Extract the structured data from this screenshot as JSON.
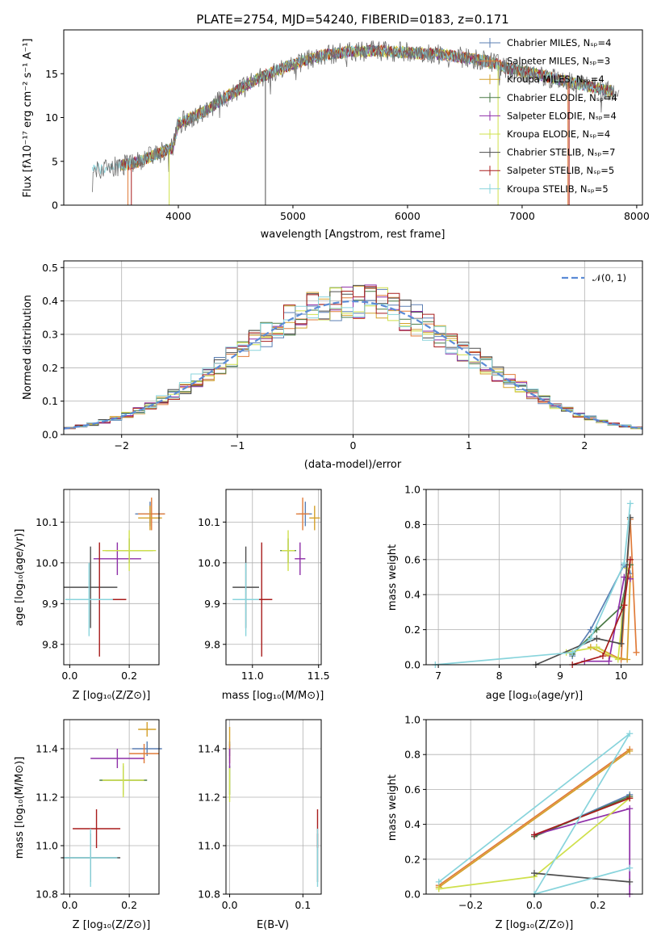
{
  "title": "PLATE=2754, MJD=54240, FIBERID=0183, z=0.171",
  "model_colors": [
    "#5b7fb3",
    "#e07b39",
    "#d4a02a",
    "#4a7a45",
    "#8e2ea8",
    "#cfe04b",
    "#4d4d4d",
    "#a81c1c",
    "#88d4dc"
  ],
  "chart_data": [
    {
      "type": "line",
      "panel": "spectrum",
      "title": "PLATE=2754, MJD=54240, FIBERID=0183, z=0.171",
      "xlabel": "wavelength [Angstrom, rest frame]",
      "ylabel": "Flux [fλ10⁻¹⁷ erg cm⁻² s⁻¹ A⁻¹]",
      "xlim": [
        3000,
        8050
      ],
      "ylim": [
        0,
        20
      ],
      "xticks": [
        "4000",
        "5000",
        "6000",
        "7000",
        "8000"
      ],
      "yticks": [
        "0",
        "5",
        "10",
        "15"
      ],
      "legend_position": "top-right",
      "legend": [
        "Chabrier MILES, Nₛₚ=4",
        "Salpeter MILES, Nₛₚ=3",
        "Kroupa MILES, Nₛₚ=4",
        "Chabrier ELODIE, Nₛₚ=4",
        "Salpeter ELODIE, Nₛₚ=4",
        "Kroupa ELODIE, Nₛₚ=4",
        "Chabrier STELIB, Nₛₚ=7",
        "Salpeter STELIB, Nₛₚ=5",
        "Kroupa STELIB, Nₛₚ=5"
      ],
      "continuum": {
        "x": [
          3250,
          3400,
          3600,
          3800,
          3950,
          4000,
          4200,
          4400,
          4500,
          4700,
          4900,
          5100,
          5300,
          5500,
          5700,
          5900,
          6100,
          6300,
          6500,
          6700,
          6900,
          7100,
          7300,
          7500,
          7700,
          7850
        ],
        "y": [
          4.0,
          4.4,
          4.7,
          5.8,
          6.5,
          9.3,
          10.5,
          12.2,
          13.0,
          14.5,
          15.6,
          16.5,
          17.2,
          17.5,
          17.6,
          17.5,
          17.3,
          17.2,
          16.8,
          16.4,
          15.5,
          15.0,
          14.4,
          13.8,
          13.2,
          12.8
        ]
      }
    },
    {
      "type": "histogram",
      "panel": "residuals",
      "xlabel": "(data-model)/error",
      "ylabel": "Normed distribution",
      "xlim": [
        -2.5,
        2.5
      ],
      "ylim": [
        0,
        0.52
      ],
      "xticks": [
        "−2",
        "−1",
        "0",
        "1",
        "2"
      ],
      "yticks": [
        "0.0",
        "0.1",
        "0.2",
        "0.3",
        "0.4",
        "0.5"
      ],
      "legend": [
        "𝒩(0, 1)"
      ],
      "legend_position": "top-right",
      "grid": true,
      "bin_width": 0.1
    },
    {
      "type": "scatter",
      "panel": "age-vs-Z",
      "xlabel": "Z [log₁₀(Z/Z⊙)]",
      "ylabel": "age  [log₁₀(age/yr)]",
      "xlim": [
        -0.02,
        0.3
      ],
      "ylim": [
        9.75,
        10.18
      ],
      "xticks": [
        "0.0",
        "0.2"
      ],
      "yticks": [
        "9.8",
        "9.9",
        "10.0",
        "10.1"
      ],
      "points": [
        {
          "x": 0.27,
          "y": 10.12,
          "xerr": 0.05,
          "yerr": 0.03
        },
        {
          "x": 0.275,
          "y": 10.12,
          "xerr": 0.045,
          "yerr": 0.04
        },
        {
          "x": 0.27,
          "y": 10.11,
          "xerr": 0.04,
          "yerr": 0.03
        },
        {
          "x": 0.2,
          "y": 10.03,
          "xerr": 0.08,
          "yerr": 0.03
        },
        {
          "x": 0.16,
          "y": 10.01,
          "xerr": 0.08,
          "yerr": 0.04
        },
        {
          "x": 0.2,
          "y": 10.03,
          "xerr": 0.09,
          "yerr": 0.05
        },
        {
          "x": 0.07,
          "y": 9.94,
          "xerr": 0.09,
          "yerr": 0.1
        },
        {
          "x": 0.1,
          "y": 9.91,
          "xerr": 0.09,
          "yerr": 0.14
        },
        {
          "x": 0.065,
          "y": 9.91,
          "xerr": 0.08,
          "yerr": 0.09
        }
      ]
    },
    {
      "type": "scatter",
      "panel": "age-vs-mass",
      "xlabel": "mass [log₁₀(M/M⊙)]",
      "ylabel": "",
      "xlim": [
        10.8,
        11.52
      ],
      "ylim": [
        9.75,
        10.18
      ],
      "xticks": [
        "11.0",
        "11.5"
      ],
      "yticks": [
        "9.8",
        "9.9",
        "10.0",
        "10.1"
      ],
      "points": [
        {
          "x": 11.4,
          "y": 10.12,
          "xerr": 0.05,
          "yerr": 0.03
        },
        {
          "x": 11.38,
          "y": 10.12,
          "xerr": 0.05,
          "yerr": 0.04
        },
        {
          "x": 11.47,
          "y": 10.11,
          "xerr": 0.04,
          "yerr": 0.03
        },
        {
          "x": 11.27,
          "y": 10.03,
          "xerr": 0.06,
          "yerr": 0.03
        },
        {
          "x": 11.36,
          "y": 10.01,
          "xerr": 0.04,
          "yerr": 0.04
        },
        {
          "x": 11.27,
          "y": 10.03,
          "xerr": 0.05,
          "yerr": 0.05
        },
        {
          "x": 10.95,
          "y": 9.94,
          "xerr": 0.1,
          "yerr": 0.1
        },
        {
          "x": 11.07,
          "y": 9.91,
          "xerr": 0.08,
          "yerr": 0.14
        },
        {
          "x": 10.95,
          "y": 9.91,
          "xerr": 0.1,
          "yerr": 0.09
        }
      ]
    },
    {
      "type": "line",
      "panel": "mass-weight-vs-age",
      "xlabel": "age  [log₁₀(age/yr)]",
      "ylabel": "mass weight",
      "xlim": [
        6.8,
        10.35
      ],
      "ylim": [
        0,
        1.0
      ],
      "xticks": [
        "7",
        "8",
        "9",
        "10"
      ],
      "yticks": [
        "0.0",
        "0.2",
        "0.4",
        "0.6",
        "0.8",
        "1.0"
      ],
      "series": [
        {
          "x": [
            9.2,
            9.5,
            10.05,
            10.15
          ],
          "y": [
            0.05,
            0.2,
            0.57,
            0.52
          ]
        },
        {
          "x": [
            9.6,
            10.0,
            10.15,
            10.25
          ],
          "y": [
            0.1,
            0.03,
            0.83,
            0.07
          ]
        },
        {
          "x": [
            9.5,
            9.8,
            10.1,
            10.15
          ],
          "y": [
            0.1,
            0.05,
            0.03,
            0.5
          ]
        },
        {
          "x": [
            9.2,
            9.6,
            10.0,
            10.15
          ],
          "y": [
            0.06,
            0.2,
            0.33,
            0.57
          ]
        },
        {
          "x": [
            9.4,
            9.8,
            10.05,
            10.15
          ],
          "y": [
            0.02,
            0.02,
            0.5,
            0.49
          ]
        },
        {
          "x": [
            9.1,
            9.6,
            9.95,
            10.1
          ],
          "y": [
            0.07,
            0.1,
            0.03,
            0.55
          ]
        },
        {
          "x": [
            8.6,
            9.6,
            10.0,
            10.15
          ],
          "y": [
            0.0,
            0.15,
            0.12,
            0.84
          ]
        },
        {
          "x": [
            9.2,
            9.7,
            10.05,
            10.15
          ],
          "y": [
            0.0,
            0.05,
            0.34,
            0.6
          ]
        },
        {
          "x": [
            6.95,
            9.2,
            9.5,
            10.05,
            10.15
          ],
          "y": [
            0.0,
            0.07,
            0.15,
            0.58,
            0.92
          ]
        }
      ]
    },
    {
      "type": "scatter",
      "panel": "mass-vs-Z",
      "xlabel": "Z [log₁₀(Z/Z⊙)]",
      "ylabel": "mass [log₁₀(M/M⊙)]",
      "xlim": [
        -0.02,
        0.3
      ],
      "ylim": [
        10.8,
        11.52
      ],
      "xticks": [
        "0.0",
        "0.2"
      ],
      "yticks": [
        "10.8",
        "11.0",
        "11.2",
        "11.4"
      ],
      "points": [
        {
          "x": 0.26,
          "y": 11.4,
          "xerr": 0.05,
          "yerr": 0.03
        },
        {
          "x": 0.25,
          "y": 11.38,
          "xerr": 0.05,
          "yerr": 0.04
        },
        {
          "x": 0.26,
          "y": 11.48,
          "xerr": 0.03,
          "yerr": 0.03
        },
        {
          "x": 0.18,
          "y": 11.27,
          "xerr": 0.08,
          "yerr": 0.06
        },
        {
          "x": 0.16,
          "y": 11.36,
          "xerr": 0.09,
          "yerr": 0.04
        },
        {
          "x": 0.18,
          "y": 11.27,
          "xerr": 0.07,
          "yerr": 0.07
        },
        {
          "x": 0.07,
          "y": 10.95,
          "xerr": 0.1,
          "yerr": 0.1
        },
        {
          "x": 0.09,
          "y": 11.07,
          "xerr": 0.08,
          "yerr": 0.08
        },
        {
          "x": 0.07,
          "y": 10.95,
          "xerr": 0.09,
          "yerr": 0.12
        }
      ]
    },
    {
      "type": "scatter",
      "panel": "mass-vs-EBV",
      "xlabel": "E(B-V)",
      "ylabel": "",
      "xlim": [
        -0.005,
        0.125
      ],
      "ylim": [
        10.8,
        11.52
      ],
      "xticks": [
        "0.0",
        "0.1"
      ],
      "yticks": [
        "10.8",
        "11.0",
        "11.2",
        "11.4"
      ],
      "points": [
        {
          "x": 0.0,
          "y": 11.4,
          "xerr": 0.0,
          "yerr": 0.03
        },
        {
          "x": 0.0,
          "y": 11.38,
          "xerr": 0.0,
          "yerr": 0.04
        },
        {
          "x": 0.0,
          "y": 11.45,
          "xerr": 0.0,
          "yerr": 0.04
        },
        {
          "x": 0.0,
          "y": 11.27,
          "xerr": 0.0,
          "yerr": 0.06
        },
        {
          "x": 0.0,
          "y": 11.36,
          "xerr": 0.0,
          "yerr": 0.04
        },
        {
          "x": 0.0,
          "y": 11.25,
          "xerr": 0.0,
          "yerr": 0.07
        },
        {
          "x": 0.12,
          "y": 10.95,
          "xerr": 0.0,
          "yerr": 0.1
        },
        {
          "x": 0.12,
          "y": 11.07,
          "xerr": 0.0,
          "yerr": 0.08
        },
        {
          "x": 0.12,
          "y": 10.95,
          "xerr": 0.0,
          "yerr": 0.12
        }
      ]
    },
    {
      "type": "line",
      "panel": "mass-weight-vs-Z",
      "xlabel": "Z [log₁₀(Z/Z⊙)]",
      "ylabel": "mass weight",
      "xlim": [
        -0.34,
        0.34
      ],
      "ylim": [
        0,
        1.0
      ],
      "xticks": [
        "−0.2",
        "0.0",
        "0.2"
      ],
      "yticks": [
        "0.0",
        "0.2",
        "0.4",
        "0.6",
        "0.8",
        "1.0"
      ],
      "series": [
        {
          "x": [
            0.0,
            0.3
          ],
          "y": [
            0.33,
            0.57
          ]
        },
        {
          "x": [
            -0.3,
            0.3
          ],
          "y": [
            0.05,
            0.83
          ]
        },
        {
          "x": [
            -0.3,
            0.3
          ],
          "y": [
            0.04,
            0.82
          ]
        },
        {
          "x": [
            0.0,
            0.3
          ],
          "y": [
            0.33,
            0.56
          ]
        },
        {
          "x": [
            0.0,
            0.3,
            0.3
          ],
          "y": [
            0.34,
            0.49,
            0.0
          ]
        },
        {
          "x": [
            -0.3,
            0.0,
            0.3
          ],
          "y": [
            0.03,
            0.1,
            0.55
          ]
        },
        {
          "x": [
            0.0,
            0.3
          ],
          "y": [
            0.12,
            0.07
          ]
        },
        {
          "x": [
            0.0,
            0.3
          ],
          "y": [
            0.34,
            0.55
          ]
        },
        {
          "x": [
            -0.3,
            0.3,
            0.0,
            0.3
          ],
          "y": [
            0.07,
            0.92,
            0.0,
            0.15
          ]
        }
      ]
    }
  ]
}
